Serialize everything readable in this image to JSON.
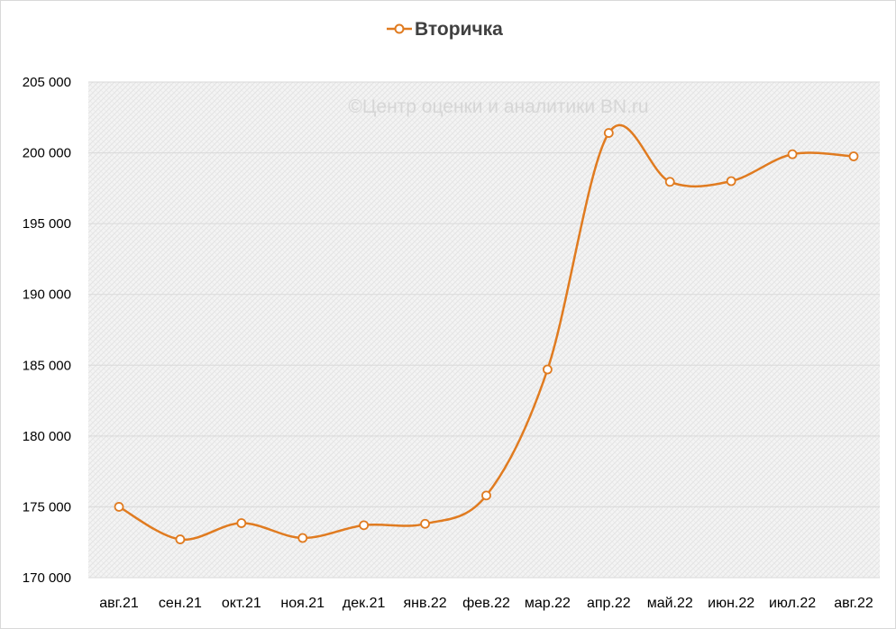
{
  "chart_data": {
    "type": "line",
    "categories": [
      "авг.21",
      "сен.21",
      "окт.21",
      "ноя.21",
      "дек.21",
      "янв.22",
      "фев.22",
      "мар.22",
      "апр.22",
      "май.22",
      "июн.22",
      "июл.22",
      "авг.22"
    ],
    "series": [
      {
        "name": "Вторичка",
        "color": "#E07B20",
        "marker": "circle-open",
        "smooth": true,
        "values": [
          175000,
          172700,
          173850,
          172800,
          173700,
          173800,
          175800,
          184700,
          201400,
          197950,
          198000,
          199900,
          199750
        ]
      }
    ],
    "ylim": [
      170000,
      205000
    ],
    "yticks": [
      170000,
      175000,
      180000,
      185000,
      190000,
      195000,
      200000,
      205000
    ],
    "ytick_labels": [
      "170 000",
      "175 000",
      "180 000",
      "185 000",
      "190 000",
      "195 000",
      "200 000",
      "205 000"
    ],
    "grid": "crosshatch-pattern",
    "legend_position": "top-center",
    "watermark": "©Центр оценки и аналитики BN.ru"
  }
}
